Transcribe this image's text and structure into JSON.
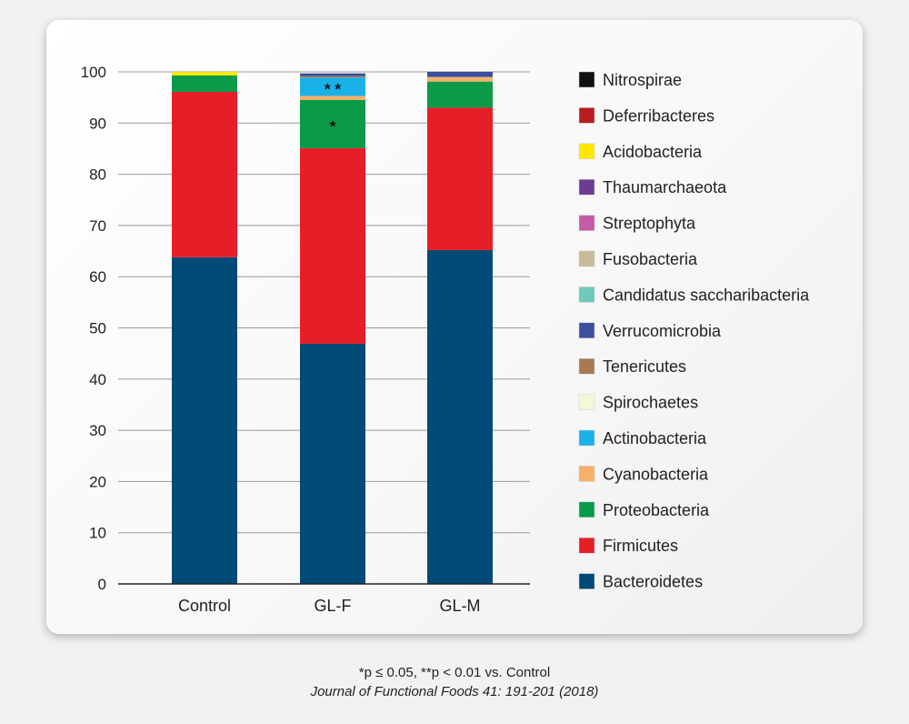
{
  "chart_data": {
    "type": "bar",
    "stacked": true,
    "categories": [
      "Control",
      "GL-F",
      "GL-M"
    ],
    "ylim": [
      0,
      100
    ],
    "yticks": [
      0,
      10,
      20,
      30,
      40,
      50,
      60,
      70,
      80,
      90,
      100
    ],
    "grid": true,
    "legend_position": "right",
    "series": [
      {
        "name": "Bacteroidetes",
        "color": "#004a77",
        "values": [
          63.8,
          46.9,
          65.2
        ]
      },
      {
        "name": "Firmicutes",
        "color": "#e61e28",
        "values": [
          32.3,
          38.2,
          27.8
        ]
      },
      {
        "name": "Proteobacteria",
        "color": "#0a9a48",
        "values": [
          3.2,
          9.4,
          5.1
        ]
      },
      {
        "name": "Cyanobacteria",
        "color": "#f5b06a",
        "values": [
          0,
          0.8,
          0.9
        ]
      },
      {
        "name": "Actinobacteria",
        "color": "#1ab0e8",
        "values": [
          0,
          3.6,
          0
        ]
      },
      {
        "name": "Spirochaetes",
        "color": "#f4f8d6",
        "values": [
          0,
          0,
          0
        ]
      },
      {
        "name": "Tenericutes",
        "color": "#a77a55",
        "values": [
          0,
          0.3,
          0
        ]
      },
      {
        "name": "Verrucomicrobia",
        "color": "#3a4f9e",
        "values": [
          0,
          0.5,
          1.0
        ]
      },
      {
        "name": "Candidatus saccharibacteria",
        "color": "#6fc9bb",
        "values": [
          0,
          0,
          0
        ]
      },
      {
        "name": "Fusobacteria",
        "color": "#c8bc98",
        "values": [
          0,
          0,
          0
        ]
      },
      {
        "name": "Streptophyta",
        "color": "#c45aa8",
        "values": [
          0,
          0,
          0
        ]
      },
      {
        "name": "Thaumarchaeota",
        "color": "#6a3c92",
        "values": [
          0,
          0,
          0
        ]
      },
      {
        "name": "Acidobacteria",
        "color": "#ffe800",
        "values": [
          0.7,
          0,
          0
        ]
      },
      {
        "name": "Deferribacteres",
        "color": "#b81c22",
        "values": [
          0,
          0,
          0
        ]
      },
      {
        "name": "Nitrospirae",
        "color": "#111111",
        "values": [
          0,
          0,
          0
        ]
      }
    ],
    "annotations": [
      {
        "category": "GL-F",
        "series": "Proteobacteria",
        "text": "*"
      },
      {
        "category": "GL-F",
        "series": "Actinobacteria",
        "text": "* *"
      }
    ]
  },
  "footnote": "*p ≤ 0.05, **p < 0.01 vs. Control",
  "citation": "Journal of Functional Foods 41: 191-201 (2018)"
}
